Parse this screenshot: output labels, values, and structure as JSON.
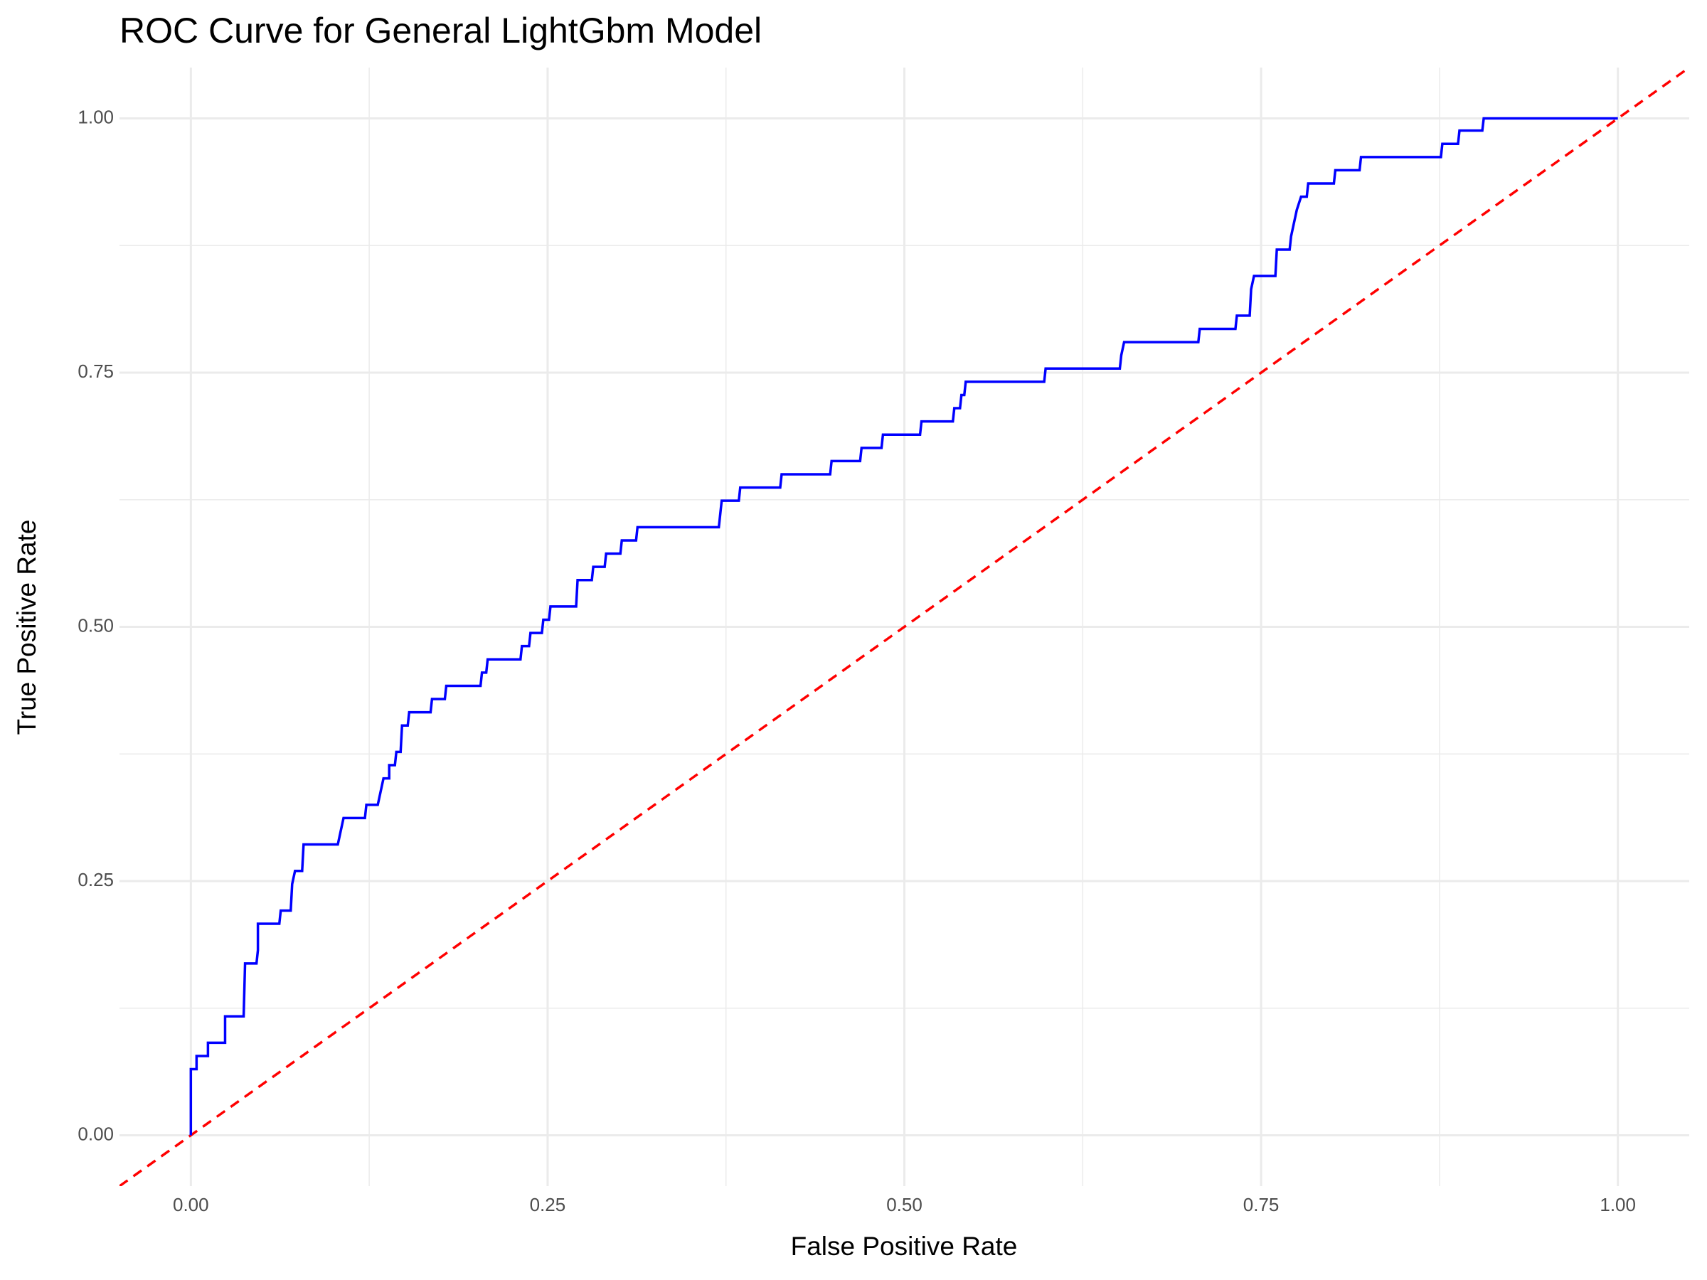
{
  "chart_data": {
    "type": "line",
    "title": "ROC Curve for General LightGbm Model",
    "x_label": "False Positive Rate",
    "y_label": "True Positive Rate",
    "xlim": [
      -0.05,
      1.05
    ],
    "ylim": [
      -0.05,
      1.05
    ],
    "xticks": [
      {
        "value": 0,
        "label": "0.00"
      },
      {
        "value": 0.25,
        "label": "0.25"
      },
      {
        "value": 0.5,
        "label": "0.50"
      },
      {
        "value": 0.75,
        "label": "0.75"
      },
      {
        "value": 1,
        "label": "1.00"
      }
    ],
    "yticks": [
      {
        "value": 0,
        "label": "0.00"
      },
      {
        "value": 0.25,
        "label": "0.25"
      },
      {
        "value": 0.5,
        "label": "0.50"
      },
      {
        "value": 0.75,
        "label": "0.75"
      },
      {
        "value": 1,
        "label": "1.00"
      }
    ],
    "xminor": [
      0.125,
      0.375,
      0.625,
      0.875
    ],
    "yminor": [
      0.125,
      0.375,
      0.625,
      0.875
    ],
    "grid": true,
    "reference_line": {
      "slope": 1,
      "intercept": 0,
      "color": "#ff0000"
    },
    "series": [
      {
        "color": "#0000ff",
        "x": [
          0,
          0,
          0.004,
          0.004,
          0.012,
          0.012,
          0.024,
          0.024,
          0.037,
          0.038,
          0.046,
          0.047,
          0.047,
          0.062,
          0.063,
          0.07,
          0.071,
          0.073,
          0.078,
          0.079,
          0.103,
          0.105,
          0.107,
          0.122,
          0.123,
          0.131,
          0.133,
          0.135,
          0.139,
          0.139,
          0.143,
          0.144,
          0.147,
          0.148,
          0.152,
          0.153,
          0.168,
          0.169,
          0.178,
          0.179,
          0.203,
          0.204,
          0.207,
          0.208,
          0.231,
          0.232,
          0.237,
          0.238,
          0.246,
          0.247,
          0.251,
          0.252,
          0.27,
          0.271,
          0.281,
          0.282,
          0.29,
          0.291,
          0.301,
          0.302,
          0.312,
          0.313,
          0.37,
          0.372,
          0.384,
          0.385,
          0.413,
          0.414,
          0.448,
          0.449,
          0.469,
          0.47,
          0.484,
          0.485,
          0.511,
          0.512,
          0.534,
          0.535,
          0.539,
          0.54,
          0.542,
          0.543,
          0.598,
          0.599,
          0.651,
          0.652,
          0.654,
          0.706,
          0.707,
          0.732,
          0.733,
          0.742,
          0.743,
          0.745,
          0.76,
          0.761,
          0.77,
          0.771,
          0.773,
          0.775,
          0.778,
          0.782,
          0.783,
          0.801,
          0.802,
          0.819,
          0.82,
          0.876,
          0.877,
          0.888,
          0.889,
          0.905,
          0.906,
          1
        ],
        "values": [
          0,
          0.065,
          0.065,
          0.078,
          0.078,
          0.091,
          0.091,
          0.117,
          0.117,
          0.169,
          0.169,
          0.182,
          0.208,
          0.208,
          0.221,
          0.221,
          0.247,
          0.26,
          0.26,
          0.286,
          0.286,
          0.299,
          0.312,
          0.312,
          0.325,
          0.325,
          0.338,
          0.351,
          0.351,
          0.364,
          0.364,
          0.377,
          0.377,
          0.403,
          0.403,
          0.416,
          0.416,
          0.429,
          0.429,
          0.442,
          0.442,
          0.455,
          0.455,
          0.468,
          0.468,
          0.481,
          0.481,
          0.494,
          0.494,
          0.507,
          0.507,
          0.52,
          0.52,
          0.546,
          0.546,
          0.559,
          0.559,
          0.572,
          0.572,
          0.585,
          0.585,
          0.598,
          0.598,
          0.624,
          0.624,
          0.637,
          0.637,
          0.65,
          0.65,
          0.663,
          0.663,
          0.676,
          0.676,
          0.689,
          0.689,
          0.702,
          0.702,
          0.715,
          0.715,
          0.728,
          0.728,
          0.741,
          0.741,
          0.754,
          0.754,
          0.767,
          0.78,
          0.78,
          0.793,
          0.793,
          0.806,
          0.806,
          0.832,
          0.845,
          0.845,
          0.871,
          0.871,
          0.884,
          0.897,
          0.91,
          0.923,
          0.923,
          0.936,
          0.936,
          0.949,
          0.949,
          0.962,
          0.962,
          0.975,
          0.975,
          0.988,
          0.988,
          1,
          1
        ]
      }
    ]
  }
}
